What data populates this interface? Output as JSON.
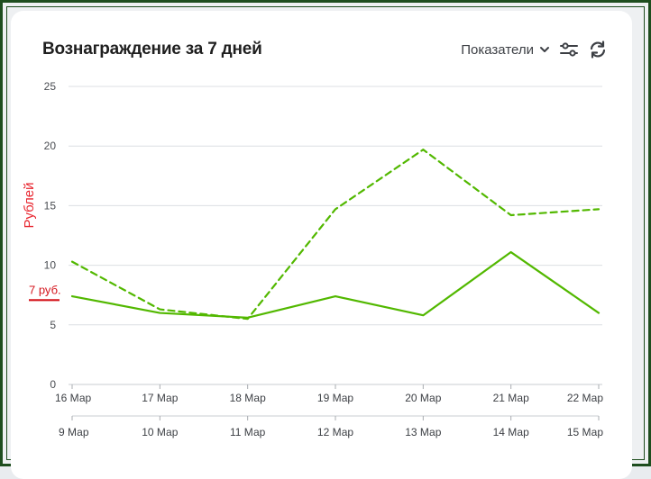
{
  "header": {
    "title": "Вознаграждение за 7 дней",
    "metrics_label": "Показатели"
  },
  "icons": {
    "metrics_dropdown": "chevron-down-icon",
    "settings": "sliders-icon",
    "refresh": "refresh-icon"
  },
  "chart_data": {
    "type": "line",
    "ylabel": "Рублей",
    "ylim": [
      0,
      25
    ],
    "yticks": [
      0,
      5,
      10,
      15,
      20,
      25
    ],
    "x_primary": [
      "16 Мар",
      "17 Мар",
      "18 Мар",
      "19 Мар",
      "20 Мар",
      "21 Мар",
      "22 Мар"
    ],
    "x_comparison": [
      "9 Мар",
      "10 Мар",
      "11 Мар",
      "12 Мар",
      "13 Мар",
      "14 Мар",
      "15 Мар"
    ],
    "series": [
      {
        "values": [
          7.4,
          6.0,
          5.6,
          7.4,
          5.8,
          11.1,
          6.0
        ],
        "style": "solid",
        "color": "#52b800"
      },
      {
        "values": [
          10.3,
          6.3,
          5.5,
          14.7,
          19.7,
          14.2,
          14.7
        ],
        "style": "dashed",
        "color": "#52b800"
      }
    ],
    "grid": true,
    "annotation": {
      "label": "7 руб.",
      "value": 7,
      "color": "#d4141c"
    }
  }
}
